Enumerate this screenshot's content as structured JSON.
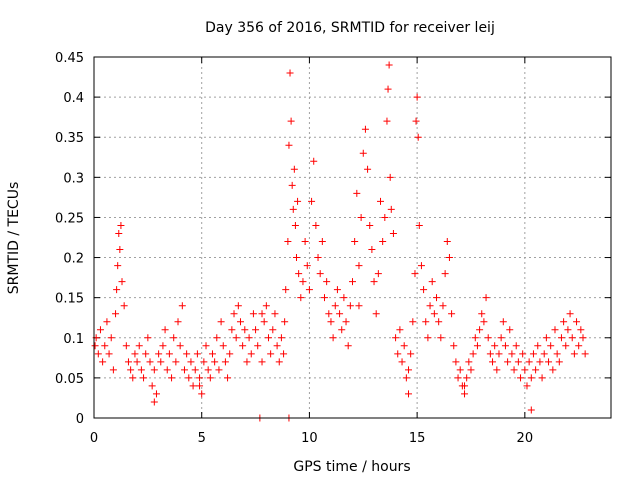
{
  "chart_data": {
    "type": "scatter",
    "title": "Day 356 of 2016, SRMTID for receiver leij",
    "xlabel": "GPS time / hours",
    "ylabel": "SRMTID / TECUs",
    "xlim": [
      0,
      24
    ],
    "ylim": [
      0,
      0.45
    ],
    "xticks": [
      0,
      5,
      10,
      15,
      20
    ],
    "yticks": [
      0,
      0.05,
      0.1,
      0.15,
      0.2,
      0.25,
      0.3,
      0.35,
      0.4,
      0.45
    ],
    "xtick_labels": [
      "0",
      "5",
      "10",
      "15",
      "20"
    ],
    "ytick_labels": [
      "0",
      "0.05",
      "0.1",
      "0.15",
      "0.2",
      "0.25",
      "0.3",
      "0.35",
      "0.4",
      "0.45"
    ],
    "grid": true,
    "marker": "+",
    "color": "#ff0000",
    "series": [
      {
        "name": "SRMTID",
        "points": [
          [
            0.05,
            0.09
          ],
          [
            0.1,
            0.1
          ],
          [
            0.2,
            0.08
          ],
          [
            0.3,
            0.11
          ],
          [
            0.4,
            0.07
          ],
          [
            0.5,
            0.09
          ],
          [
            0.6,
            0.12
          ],
          [
            0.7,
            0.08
          ],
          [
            0.8,
            0.1
          ],
          [
            0.9,
            0.06
          ],
          [
            1.0,
            0.13
          ],
          [
            1.05,
            0.16
          ],
          [
            1.1,
            0.19
          ],
          [
            1.15,
            0.23
          ],
          [
            1.2,
            0.21
          ],
          [
            1.25,
            0.24
          ],
          [
            1.3,
            0.17
          ],
          [
            1.4,
            0.14
          ],
          [
            1.5,
            0.09
          ],
          [
            1.6,
            0.07
          ],
          [
            1.7,
            0.06
          ],
          [
            1.8,
            0.05
          ],
          [
            1.9,
            0.08
          ],
          [
            2.0,
            0.07
          ],
          [
            2.1,
            0.09
          ],
          [
            2.2,
            0.06
          ],
          [
            2.3,
            0.05
          ],
          [
            2.4,
            0.08
          ],
          [
            2.5,
            0.1
          ],
          [
            2.6,
            0.07
          ],
          [
            2.7,
            0.04
          ],
          [
            2.8,
            0.06
          ],
          [
            2.9,
            0.03
          ],
          [
            3.0,
            0.08
          ],
          [
            3.1,
            0.07
          ],
          [
            3.2,
            0.09
          ],
          [
            3.3,
            0.11
          ],
          [
            3.4,
            0.06
          ],
          [
            3.5,
            0.08
          ],
          [
            3.6,
            0.05
          ],
          [
            3.7,
            0.1
          ],
          [
            3.8,
            0.07
          ],
          [
            3.9,
            0.12
          ],
          [
            4.0,
            0.09
          ],
          [
            4.1,
            0.14
          ],
          [
            4.2,
            0.06
          ],
          [
            4.3,
            0.08
          ],
          [
            4.4,
            0.05
          ],
          [
            4.5,
            0.07
          ],
          [
            4.6,
            0.04
          ],
          [
            4.7,
            0.06
          ],
          [
            4.8,
            0.08
          ],
          [
            4.9,
            0.05
          ],
          [
            5.0,
            0.03
          ],
          [
            5.1,
            0.07
          ],
          [
            5.2,
            0.09
          ],
          [
            5.3,
            0.06
          ],
          [
            5.4,
            0.05
          ],
          [
            5.5,
            0.08
          ],
          [
            5.6,
            0.07
          ],
          [
            5.7,
            0.1
          ],
          [
            5.8,
            0.06
          ],
          [
            5.9,
            0.12
          ],
          [
            6.0,
            0.09
          ],
          [
            6.1,
            0.07
          ],
          [
            6.2,
            0.05
          ],
          [
            6.3,
            0.08
          ],
          [
            6.4,
            0.11
          ],
          [
            6.5,
            0.13
          ],
          [
            6.6,
            0.1
          ],
          [
            6.7,
            0.14
          ],
          [
            6.8,
            0.12
          ],
          [
            6.9,
            0.09
          ],
          [
            7.0,
            0.11
          ],
          [
            7.1,
            0.07
          ],
          [
            7.2,
            0.1
          ],
          [
            7.3,
            0.08
          ],
          [
            7.4,
            0.13
          ],
          [
            7.5,
            0.11
          ],
          [
            7.6,
            0.09
          ],
          [
            7.7,
            0.0
          ],
          [
            7.8,
            0.07
          ],
          [
            7.9,
            0.12
          ],
          [
            8.0,
            0.14
          ],
          [
            8.1,
            0.1
          ],
          [
            8.2,
            0.08
          ],
          [
            8.3,
            0.11
          ],
          [
            8.4,
            0.13
          ],
          [
            8.5,
            0.09
          ],
          [
            8.6,
            0.07
          ],
          [
            8.7,
            0.1
          ],
          [
            8.8,
            0.08
          ],
          [
            8.85,
            0.12
          ],
          [
            8.9,
            0.16
          ],
          [
            9.0,
            0.22
          ],
          [
            9.05,
            0.34
          ],
          [
            9.1,
            0.43
          ],
          [
            9.15,
            0.37
          ],
          [
            9.2,
            0.29
          ],
          [
            9.25,
            0.26
          ],
          [
            9.3,
            0.31
          ],
          [
            9.35,
            0.24
          ],
          [
            9.4,
            0.2
          ],
          [
            9.45,
            0.27
          ],
          [
            9.5,
            0.18
          ],
          [
            9.6,
            0.15
          ],
          [
            9.7,
            0.17
          ],
          [
            9.8,
            0.22
          ],
          [
            9.9,
            0.19
          ],
          [
            10.0,
            0.16
          ],
          [
            10.1,
            0.27
          ],
          [
            10.2,
            0.32
          ],
          [
            10.3,
            0.24
          ],
          [
            10.4,
            0.2
          ],
          [
            10.5,
            0.18
          ],
          [
            10.6,
            0.22
          ],
          [
            10.7,
            0.15
          ],
          [
            10.8,
            0.17
          ],
          [
            10.9,
            0.13
          ],
          [
            11.0,
            0.12
          ],
          [
            11.1,
            0.1
          ],
          [
            11.2,
            0.14
          ],
          [
            11.3,
            0.16
          ],
          [
            11.4,
            0.13
          ],
          [
            11.5,
            0.11
          ],
          [
            11.6,
            0.15
          ],
          [
            11.7,
            0.12
          ],
          [
            11.8,
            0.09
          ],
          [
            11.9,
            0.14
          ],
          [
            12.0,
            0.17
          ],
          [
            12.1,
            0.22
          ],
          [
            12.2,
            0.28
          ],
          [
            12.3,
            0.19
          ],
          [
            12.4,
            0.25
          ],
          [
            12.5,
            0.33
          ],
          [
            12.6,
            0.36
          ],
          [
            12.7,
            0.31
          ],
          [
            12.8,
            0.24
          ],
          [
            12.9,
            0.21
          ],
          [
            13.0,
            0.17
          ],
          [
            13.1,
            0.13
          ],
          [
            13.2,
            0.18
          ],
          [
            13.3,
            0.27
          ],
          [
            13.4,
            0.22
          ],
          [
            13.5,
            0.25
          ],
          [
            13.6,
            0.37
          ],
          [
            13.65,
            0.41
          ],
          [
            13.7,
            0.44
          ],
          [
            13.75,
            0.3
          ],
          [
            13.8,
            0.26
          ],
          [
            13.9,
            0.23
          ],
          [
            14.0,
            0.1
          ],
          [
            14.1,
            0.08
          ],
          [
            14.2,
            0.11
          ],
          [
            14.3,
            0.07
          ],
          [
            14.4,
            0.09
          ],
          [
            14.5,
            0.05
          ],
          [
            14.6,
            0.06
          ],
          [
            14.7,
            0.08
          ],
          [
            14.8,
            0.12
          ],
          [
            14.9,
            0.18
          ],
          [
            14.95,
            0.37
          ],
          [
            15.0,
            0.4
          ],
          [
            15.05,
            0.35
          ],
          [
            15.1,
            0.24
          ],
          [
            15.2,
            0.19
          ],
          [
            15.3,
            0.16
          ],
          [
            15.4,
            0.12
          ],
          [
            15.5,
            0.1
          ],
          [
            15.6,
            0.14
          ],
          [
            15.7,
            0.17
          ],
          [
            15.8,
            0.13
          ],
          [
            15.9,
            0.15
          ],
          [
            16.0,
            0.12
          ],
          [
            16.1,
            0.1
          ],
          [
            16.2,
            0.14
          ],
          [
            16.3,
            0.18
          ],
          [
            16.4,
            0.22
          ],
          [
            16.5,
            0.2
          ],
          [
            16.6,
            0.13
          ],
          [
            16.7,
            0.09
          ],
          [
            16.8,
            0.07
          ],
          [
            16.9,
            0.05
          ],
          [
            17.0,
            0.06
          ],
          [
            17.1,
            0.04
          ],
          [
            17.2,
            0.03
          ],
          [
            17.3,
            0.05
          ],
          [
            17.4,
            0.07
          ],
          [
            17.5,
            0.06
          ],
          [
            17.6,
            0.08
          ],
          [
            17.7,
            0.1
          ],
          [
            17.8,
            0.09
          ],
          [
            17.9,
            0.11
          ],
          [
            18.0,
            0.13
          ],
          [
            18.1,
            0.12
          ],
          [
            18.2,
            0.15
          ],
          [
            18.3,
            0.1
          ],
          [
            18.4,
            0.08
          ],
          [
            18.5,
            0.07
          ],
          [
            18.6,
            0.09
          ],
          [
            18.7,
            0.06
          ],
          [
            18.8,
            0.08
          ],
          [
            18.9,
            0.1
          ],
          [
            19.0,
            0.12
          ],
          [
            19.1,
            0.09
          ],
          [
            19.2,
            0.07
          ],
          [
            19.3,
            0.11
          ],
          [
            19.4,
            0.08
          ],
          [
            19.5,
            0.06
          ],
          [
            19.6,
            0.09
          ],
          [
            19.7,
            0.07
          ],
          [
            19.8,
            0.05
          ],
          [
            19.9,
            0.08
          ],
          [
            20.0,
            0.06
          ],
          [
            20.1,
            0.04
          ],
          [
            20.2,
            0.07
          ],
          [
            20.3,
            0.05
          ],
          [
            20.4,
            0.08
          ],
          [
            20.5,
            0.06
          ],
          [
            20.6,
            0.09
          ],
          [
            20.7,
            0.07
          ],
          [
            20.8,
            0.05
          ],
          [
            20.9,
            0.08
          ],
          [
            21.0,
            0.1
          ],
          [
            21.1,
            0.07
          ],
          [
            21.2,
            0.09
          ],
          [
            21.3,
            0.06
          ],
          [
            21.4,
            0.11
          ],
          [
            21.5,
            0.08
          ],
          [
            21.6,
            0.07
          ],
          [
            21.7,
            0.1
          ],
          [
            21.8,
            0.12
          ],
          [
            21.9,
            0.09
          ],
          [
            22.0,
            0.11
          ],
          [
            22.1,
            0.13
          ],
          [
            22.2,
            0.1
          ],
          [
            22.3,
            0.08
          ],
          [
            22.4,
            0.12
          ],
          [
            22.5,
            0.09
          ],
          [
            22.6,
            0.11
          ],
          [
            22.7,
            0.1
          ],
          [
            22.8,
            0.08
          ],
          [
            9.05,
            0.0
          ],
          [
            20.3,
            0.01
          ],
          [
            2.8,
            0.02
          ],
          [
            17.2,
            0.04
          ],
          [
            14.6,
            0.03
          ],
          [
            4.9,
            0.04
          ],
          [
            7.8,
            0.13
          ],
          [
            12.3,
            0.14
          ]
        ]
      }
    ]
  }
}
